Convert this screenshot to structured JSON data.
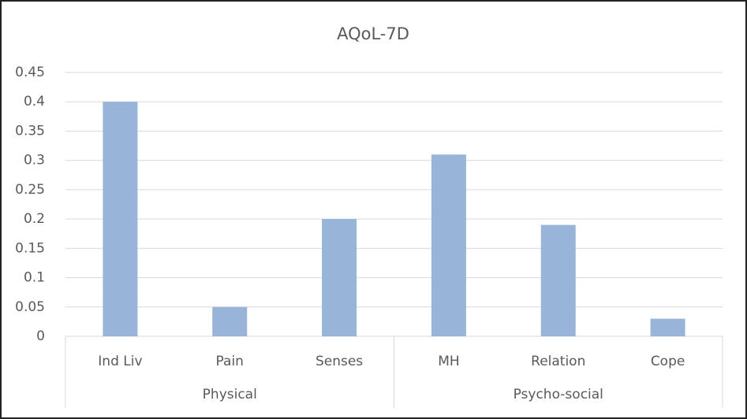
{
  "chart_data": {
    "type": "bar",
    "title": "AQoL-7D",
    "groups": [
      {
        "label": "Physical",
        "categories": [
          "Ind Liv",
          "Pain",
          "Senses"
        ],
        "values": [
          0.4,
          0.05,
          0.2
        ]
      },
      {
        "label": "Psycho-social",
        "categories": [
          "MH",
          "Relation",
          "Cope"
        ],
        "values": [
          0.31,
          0.19,
          0.03
        ]
      }
    ],
    "color": "#98b4d8",
    "ylim": [
      0,
      0.45
    ],
    "yticks": [
      0,
      0.05,
      0.1,
      0.15,
      0.2,
      0.25,
      0.3,
      0.35,
      0.4,
      0.45
    ],
    "grid": true
  }
}
